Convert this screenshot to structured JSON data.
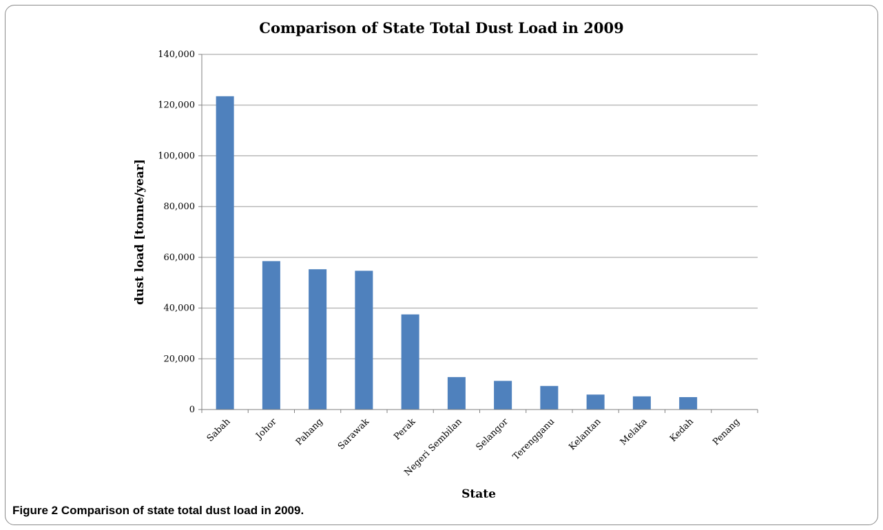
{
  "caption": {
    "text": "Figure 2 Comparison of state total dust load in 2009."
  },
  "colors": {
    "bar": "#4f81bd",
    "grid": "#9a9a9a",
    "axis": "#7f7f7f"
  },
  "chart_data": {
    "type": "bar",
    "title": "Comparison of State Total Dust Load in 2009",
    "xlabel": "State",
    "ylabel": "dust load  [tonne/year]",
    "ylim": [
      0,
      140000
    ],
    "yticks": [
      0,
      20000,
      40000,
      60000,
      80000,
      100000,
      120000,
      140000
    ],
    "ytick_labels": [
      "0",
      "20,000",
      "40,000",
      "60,000",
      "80,000",
      "100,000",
      "120,000",
      "140,000"
    ],
    "grid": true,
    "categories": [
      "Sabah",
      "Johor",
      "Pahang",
      "Sarawak",
      "Perak",
      "Negeri Sembilan",
      "Selangor",
      "Terengganu",
      "Kelantan",
      "Melaka",
      "Kedah",
      "Penang"
    ],
    "values": [
      123500,
      58500,
      55300,
      54700,
      37500,
      12800,
      11300,
      9300,
      5900,
      5200,
      4900,
      0
    ]
  }
}
